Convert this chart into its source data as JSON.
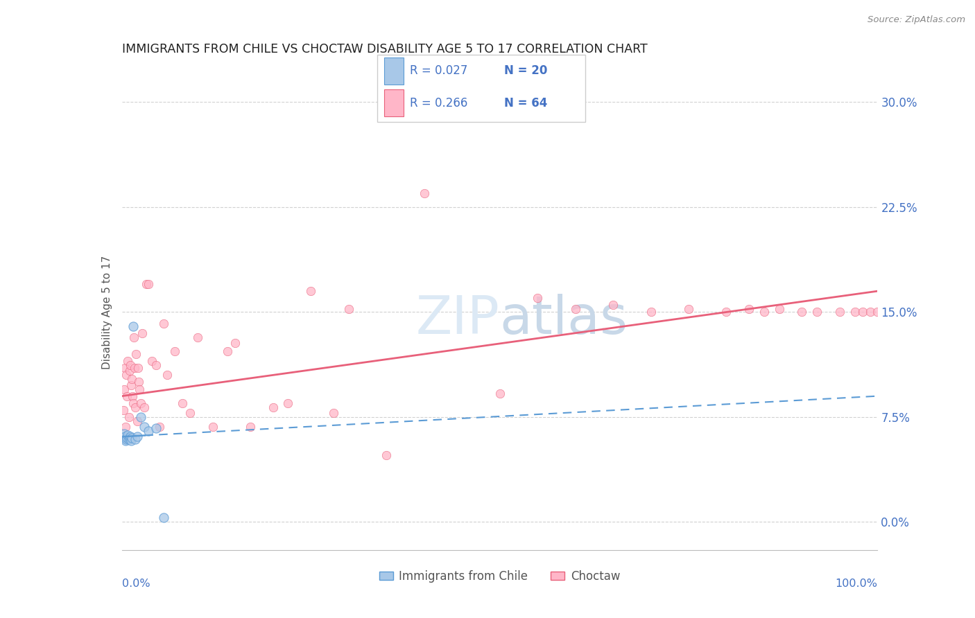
{
  "title": "IMMIGRANTS FROM CHILE VS CHOCTAW DISABILITY AGE 5 TO 17 CORRELATION CHART",
  "source": "Source: ZipAtlas.com",
  "ylabel": "Disability Age 5 to 17",
  "ytick_values": [
    0.0,
    7.5,
    15.0,
    22.5,
    30.0
  ],
  "xlim": [
    0.0,
    100.0
  ],
  "ylim": [
    -2.0,
    32.0
  ],
  "legend_footer1": "Immigrants from Chile",
  "legend_footer2": "Choctaw",
  "color_blue": "#a8c8e8",
  "color_pink": "#ffb6c8",
  "color_blue_dark": "#5b9bd5",
  "color_pink_dark": "#e8607a",
  "color_text_blue": "#4472c4",
  "watermark_color": "#dce9f5",
  "background_color": "#ffffff",
  "chile_r": 0.027,
  "chile_n": 20,
  "choctaw_r": 0.266,
  "choctaw_n": 64,
  "grid_color": "#cccccc",
  "marker_size_chile": 90,
  "marker_size_choctaw": 80,
  "chile_x": [
    0.2,
    0.3,
    0.4,
    0.5,
    0.6,
    0.7,
    0.8,
    0.9,
    1.0,
    1.1,
    1.2,
    1.3,
    1.5,
    1.8,
    2.0,
    2.5,
    3.0,
    3.5,
    4.5,
    5.5
  ],
  "chile_y": [
    6.0,
    6.3,
    6.1,
    5.8,
    5.9,
    6.0,
    6.2,
    5.9,
    6.0,
    6.1,
    5.8,
    6.0,
    14.0,
    5.9,
    6.1,
    7.5,
    6.8,
    6.5,
    6.7,
    0.3
  ],
  "choctaw_x": [
    0.2,
    0.3,
    0.4,
    0.5,
    0.6,
    0.7,
    0.8,
    0.9,
    1.0,
    1.1,
    1.2,
    1.3,
    1.4,
    1.5,
    1.6,
    1.7,
    1.8,
    1.9,
    2.0,
    2.1,
    2.2,
    2.3,
    2.5,
    2.7,
    3.0,
    3.2,
    3.5,
    4.0,
    4.5,
    5.0,
    5.5,
    6.0,
    7.0,
    8.0,
    9.0,
    10.0,
    12.0,
    14.0,
    15.0,
    17.0,
    20.0,
    22.0,
    25.0,
    28.0,
    30.0,
    35.0,
    40.0,
    50.0,
    55.0,
    60.0,
    65.0,
    70.0,
    75.0,
    80.0,
    83.0,
    85.0,
    87.0,
    90.0,
    92.0,
    95.0,
    97.0,
    98.0,
    99.0,
    100.0
  ],
  "choctaw_y": [
    8.0,
    9.5,
    11.0,
    6.8,
    10.5,
    9.0,
    11.5,
    7.5,
    10.8,
    11.2,
    9.8,
    10.2,
    9.0,
    8.5,
    13.2,
    11.0,
    8.2,
    12.0,
    7.2,
    11.0,
    10.0,
    9.5,
    8.5,
    13.5,
    8.2,
    17.0,
    17.0,
    11.5,
    11.2,
    6.8,
    14.2,
    10.5,
    12.2,
    8.5,
    7.8,
    13.2,
    6.8,
    12.2,
    12.8,
    6.8,
    8.2,
    8.5,
    16.5,
    7.8,
    15.2,
    4.8,
    23.5,
    9.2,
    16.0,
    15.2,
    15.5,
    15.0,
    15.2,
    15.0,
    15.2,
    15.0,
    15.2,
    15.0,
    15.0,
    15.0,
    15.0,
    15.0,
    15.0,
    15.0
  ],
  "chile_trend_x0": 0.0,
  "chile_trend_y0": 6.1,
  "chile_trend_x1": 100.0,
  "chile_trend_y1": 9.0,
  "choctaw_trend_x0": 0.0,
  "choctaw_trend_y0": 9.0,
  "choctaw_trend_x1": 100.0,
  "choctaw_trend_y1": 16.5
}
